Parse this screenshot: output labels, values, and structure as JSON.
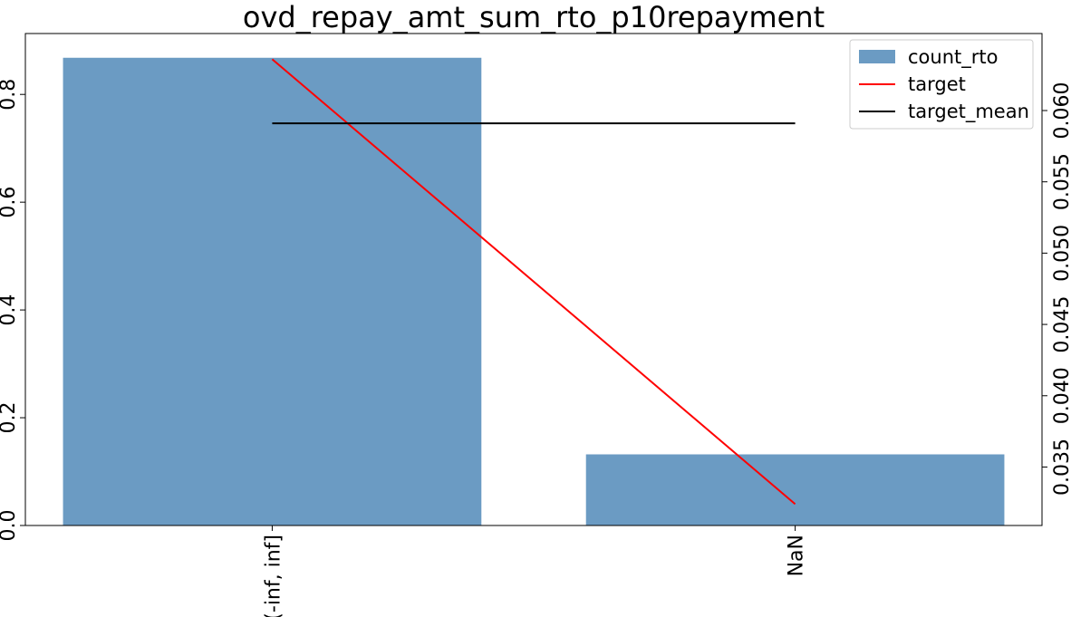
{
  "chart_data": {
    "type": "bar",
    "title": "ovd_repay_amt_sum_rto_p10repayment",
    "categories": [
      "(-inf, inf]",
      "NaN"
    ],
    "series": [
      {
        "name": "count_rto",
        "type": "bar",
        "axis": "left",
        "values": [
          0.868,
          0.132
        ],
        "color": "#6b9bc3"
      },
      {
        "name": "target",
        "type": "line",
        "axis": "right",
        "values": [
          0.0636,
          0.0324
        ],
        "color": "#ff0000"
      },
      {
        "name": "target_mean",
        "type": "line",
        "axis": "right",
        "values": [
          0.0591,
          0.0591
        ],
        "color": "#000000"
      }
    ],
    "y_left": {
      "ylim": [
        0,
        0.913
      ],
      "ticks": [
        0.0,
        0.2,
        0.4,
        0.6,
        0.8
      ],
      "tick_labels": [
        "0.0",
        "0.2",
        "0.4",
        "0.6",
        "0.8"
      ]
    },
    "y_right": {
      "ylim": [
        0.0309,
        0.0654
      ],
      "ticks": [
        0.035,
        0.04,
        0.045,
        0.05,
        0.055,
        0.06
      ],
      "tick_labels": [
        "0.035",
        "0.040",
        "0.045",
        "0.050",
        "0.055",
        "0.060"
      ]
    },
    "xlabel": "",
    "ylabel": "",
    "grid": false,
    "legend": {
      "position": "top-right",
      "entries": [
        "count_rto",
        "target",
        "target_mean"
      ]
    }
  }
}
